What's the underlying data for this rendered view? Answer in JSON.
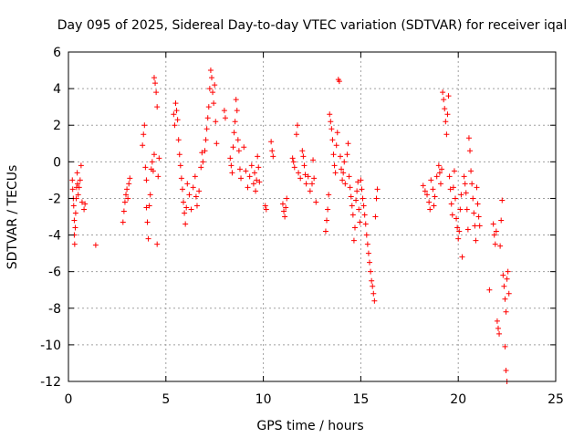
{
  "chart_data": {
    "type": "scatter",
    "title": "Day 095 of 2025, Sidereal Day-to-day VTEC variation (SDTVAR) for receiver iqal",
    "xlabel": "GPS time / hours",
    "ylabel": "SDTVAR / TECUs",
    "xlim": [
      0,
      25
    ],
    "ylim": [
      -12,
      6
    ],
    "xticks": [
      0,
      5,
      10,
      15,
      20,
      25
    ],
    "yticks": [
      -12,
      -10,
      -8,
      -6,
      -4,
      -2,
      0,
      2,
      4,
      6
    ],
    "xtick_labels": [
      "0",
      "5",
      "10",
      "15",
      "20",
      "25"
    ],
    "ytick_labels": [
      "-12",
      "-10",
      "-8",
      "-6",
      "-4",
      "-2",
      "0",
      "2",
      "4",
      "6"
    ],
    "grid": true,
    "marker": "+",
    "color": "#ff0000",
    "series": [
      {
        "name": "iqal",
        "points": [
          [
            0.2,
            -1.0
          ],
          [
            0.22,
            -1.5
          ],
          [
            0.25,
            -2.0
          ],
          [
            0.27,
            -2.4
          ],
          [
            0.3,
            -3.2
          ],
          [
            0.3,
            -4.0
          ],
          [
            0.32,
            -4.5
          ],
          [
            0.35,
            -3.6
          ],
          [
            0.37,
            -2.8
          ],
          [
            0.4,
            -2.0
          ],
          [
            0.42,
            -1.4
          ],
          [
            0.45,
            -0.6
          ],
          [
            0.47,
            -1.2
          ],
          [
            0.5,
            -1.8
          ],
          [
            0.55,
            -1.4
          ],
          [
            0.6,
            -1.0
          ],
          [
            0.65,
            -0.2
          ],
          [
            0.7,
            -2.2
          ],
          [
            0.8,
            -2.6
          ],
          [
            0.85,
            -2.3
          ],
          [
            1.4,
            -4.55
          ],
          [
            2.8,
            -3.3
          ],
          [
            2.85,
            -2.7
          ],
          [
            2.9,
            -2.2
          ],
          [
            2.95,
            -1.8
          ],
          [
            3.0,
            -1.5
          ],
          [
            3.05,
            -2.0
          ],
          [
            3.1,
            -1.2
          ],
          [
            3.15,
            -0.9
          ],
          [
            3.8,
            0.9
          ],
          [
            3.85,
            1.5
          ],
          [
            3.9,
            2.0
          ],
          [
            3.95,
            -0.3
          ],
          [
            4.0,
            -1.0
          ],
          [
            4.0,
            -2.5
          ],
          [
            4.05,
            -3.3
          ],
          [
            4.1,
            -4.2
          ],
          [
            4.15,
            -2.4
          ],
          [
            4.2,
            -1.8
          ],
          [
            4.25,
            -0.4
          ],
          [
            4.3,
            0.0
          ],
          [
            4.35,
            -0.5
          ],
          [
            4.4,
            0.4
          ],
          [
            4.4,
            4.6
          ],
          [
            4.45,
            4.3
          ],
          [
            4.5,
            3.8
          ],
          [
            4.55,
            3.0
          ],
          [
            4.55,
            -4.5
          ],
          [
            4.6,
            -0.8
          ],
          [
            4.65,
            0.2
          ],
          [
            5.4,
            2.6
          ],
          [
            5.45,
            2.0
          ],
          [
            5.5,
            3.2
          ],
          [
            5.55,
            2.8
          ],
          [
            5.6,
            2.3
          ],
          [
            5.65,
            1.2
          ],
          [
            5.7,
            0.4
          ],
          [
            5.75,
            -0.2
          ],
          [
            5.8,
            -0.9
          ],
          [
            5.85,
            -1.5
          ],
          [
            5.9,
            -2.2
          ],
          [
            5.95,
            -2.8
          ],
          [
            6.0,
            -3.4
          ],
          [
            6.05,
            -2.5
          ],
          [
            6.1,
            -1.2
          ],
          [
            6.2,
            -1.8
          ],
          [
            6.3,
            -2.6
          ],
          [
            6.4,
            -1.4
          ],
          [
            6.5,
            -0.8
          ],
          [
            6.55,
            -1.9
          ],
          [
            6.6,
            -2.4
          ],
          [
            6.7,
            -1.6
          ],
          [
            6.8,
            -0.3
          ],
          [
            6.85,
            0.5
          ],
          [
            6.9,
            0.0
          ],
          [
            7.0,
            0.6
          ],
          [
            7.05,
            1.2
          ],
          [
            7.1,
            1.8
          ],
          [
            7.15,
            2.4
          ],
          [
            7.2,
            3.0
          ],
          [
            7.25,
            4.0
          ],
          [
            7.3,
            5.0
          ],
          [
            7.35,
            4.6
          ],
          [
            7.4,
            3.8
          ],
          [
            7.45,
            3.2
          ],
          [
            7.5,
            4.2
          ],
          [
            7.55,
            2.2
          ],
          [
            7.6,
            1.0
          ],
          [
            8.0,
            2.8
          ],
          [
            8.05,
            2.4
          ],
          [
            8.3,
            0.2
          ],
          [
            8.35,
            -0.2
          ],
          [
            8.4,
            -0.6
          ],
          [
            8.45,
            0.8
          ],
          [
            8.5,
            1.6
          ],
          [
            8.55,
            2.2
          ],
          [
            8.6,
            3.4
          ],
          [
            8.65,
            2.8
          ],
          [
            8.7,
            1.2
          ],
          [
            8.75,
            0.6
          ],
          [
            8.8,
            -0.4
          ],
          [
            8.85,
            -0.9
          ],
          [
            9.0,
            0.8
          ],
          [
            9.1,
            -0.5
          ],
          [
            9.2,
            -1.4
          ],
          [
            9.3,
            -0.8
          ],
          [
            9.4,
            -0.2
          ],
          [
            9.5,
            -1.2
          ],
          [
            9.55,
            -0.6
          ],
          [
            9.6,
            -1.6
          ],
          [
            9.65,
            -1.0
          ],
          [
            9.7,
            0.3
          ],
          [
            9.75,
            -0.3
          ],
          [
            9.8,
            -1.1
          ],
          [
            10.1,
            -2.4
          ],
          [
            10.15,
            -2.6
          ],
          [
            10.4,
            1.1
          ],
          [
            10.45,
            0.6
          ],
          [
            10.5,
            0.3
          ],
          [
            11.0,
            -2.3
          ],
          [
            11.05,
            -2.7
          ],
          [
            11.1,
            -3.0
          ],
          [
            11.15,
            -2.5
          ],
          [
            11.2,
            -2.0
          ],
          [
            11.5,
            0.2
          ],
          [
            11.55,
            0.0
          ],
          [
            11.6,
            -0.3
          ],
          [
            11.7,
            1.5
          ],
          [
            11.75,
            2.0
          ],
          [
            11.8,
            -0.6
          ],
          [
            11.9,
            -0.9
          ],
          [
            12.0,
            0.6
          ],
          [
            12.05,
            0.3
          ],
          [
            12.1,
            -0.2
          ],
          [
            12.15,
            -0.7
          ],
          [
            12.2,
            -1.2
          ],
          [
            12.3,
            -0.8
          ],
          [
            12.4,
            -1.6
          ],
          [
            12.5,
            -1.2
          ],
          [
            12.55,
            0.1
          ],
          [
            12.6,
            -0.9
          ],
          [
            12.7,
            -2.2
          ],
          [
            13.2,
            -3.8
          ],
          [
            13.25,
            -3.2
          ],
          [
            13.3,
            -2.6
          ],
          [
            13.35,
            -1.8
          ],
          [
            13.4,
            2.6
          ],
          [
            13.45,
            2.2
          ],
          [
            13.5,
            1.8
          ],
          [
            13.55,
            1.2
          ],
          [
            13.6,
            0.4
          ],
          [
            13.65,
            -0.2
          ],
          [
            13.7,
            -0.6
          ],
          [
            13.75,
            0.9
          ],
          [
            13.8,
            1.6
          ],
          [
            13.85,
            4.5
          ],
          [
            13.9,
            4.4
          ],
          [
            13.95,
            0.3
          ],
          [
            14.0,
            -0.4
          ],
          [
            14.05,
            -1.0
          ],
          [
            14.1,
            -0.6
          ],
          [
            14.15,
            0.0
          ],
          [
            14.2,
            -1.2
          ],
          [
            14.3,
            0.4
          ],
          [
            14.35,
            1.0
          ],
          [
            14.4,
            -0.8
          ],
          [
            14.45,
            -1.4
          ],
          [
            14.5,
            -1.9
          ],
          [
            14.55,
            -2.4
          ],
          [
            14.6,
            -2.9
          ],
          [
            14.65,
            -4.3
          ],
          [
            14.7,
            -3.6
          ],
          [
            14.75,
            -2.1
          ],
          [
            14.8,
            -1.6
          ],
          [
            14.85,
            -1.1
          ],
          [
            14.9,
            -2.6
          ],
          [
            14.95,
            -3.3
          ],
          [
            15.0,
            -1.0
          ],
          [
            15.05,
            -1.5
          ],
          [
            15.1,
            -2.0
          ],
          [
            15.15,
            -2.4
          ],
          [
            15.2,
            -2.9
          ],
          [
            15.25,
            -3.4
          ],
          [
            15.3,
            -4.0
          ],
          [
            15.35,
            -4.5
          ],
          [
            15.4,
            -5.0
          ],
          [
            15.45,
            -5.5
          ],
          [
            15.5,
            -6.0
          ],
          [
            15.55,
            -6.5
          ],
          [
            15.6,
            -6.8
          ],
          [
            15.65,
            -7.2
          ],
          [
            15.7,
            -7.6
          ],
          [
            15.75,
            -3.0
          ],
          [
            15.8,
            -2.0
          ],
          [
            15.85,
            -1.5
          ],
          [
            18.2,
            -1.3
          ],
          [
            18.3,
            -1.6
          ],
          [
            18.4,
            -1.8
          ],
          [
            18.5,
            -2.2
          ],
          [
            18.55,
            -2.6
          ],
          [
            18.6,
            -1.0
          ],
          [
            18.7,
            -1.5
          ],
          [
            18.75,
            -2.4
          ],
          [
            18.8,
            -1.9
          ],
          [
            18.9,
            -0.8
          ],
          [
            19.0,
            -0.2
          ],
          [
            19.05,
            -0.6
          ],
          [
            19.1,
            -1.2
          ],
          [
            19.15,
            -0.4
          ],
          [
            19.2,
            3.8
          ],
          [
            19.25,
            3.4
          ],
          [
            19.3,
            2.9
          ],
          [
            19.35,
            2.2
          ],
          [
            19.4,
            1.5
          ],
          [
            19.45,
            2.6
          ],
          [
            19.5,
            3.6
          ],
          [
            19.55,
            -0.8
          ],
          [
            19.6,
            -1.5
          ],
          [
            19.65,
            -2.3
          ],
          [
            19.7,
            -2.9
          ],
          [
            19.75,
            -1.4
          ],
          [
            19.8,
            -0.5
          ],
          [
            19.85,
            -2.0
          ],
          [
            19.9,
            -3.1
          ],
          [
            19.95,
            -3.6
          ],
          [
            20.0,
            -4.2
          ],
          [
            20.05,
            -3.8
          ],
          [
            20.1,
            -2.6
          ],
          [
            20.15,
            -1.8
          ],
          [
            20.2,
            -5.2
          ],
          [
            20.3,
            -0.8
          ],
          [
            20.35,
            -1.2
          ],
          [
            20.4,
            -1.7
          ],
          [
            20.45,
            -2.6
          ],
          [
            20.5,
            -3.7
          ],
          [
            20.55,
            1.3
          ],
          [
            20.6,
            0.6
          ],
          [
            20.65,
            -0.5
          ],
          [
            20.7,
            -1.2
          ],
          [
            20.75,
            -2.0
          ],
          [
            20.8,
            -2.8
          ],
          [
            20.85,
            -3.5
          ],
          [
            20.9,
            -4.3
          ],
          [
            20.95,
            -1.4
          ],
          [
            21.0,
            -2.3
          ],
          [
            21.05,
            -3.0
          ],
          [
            21.1,
            -3.5
          ],
          [
            21.6,
            -7.0
          ],
          [
            21.8,
            -3.4
          ],
          [
            21.85,
            -4.0
          ],
          [
            21.9,
            -4.5
          ],
          [
            21.95,
            -3.8
          ],
          [
            22.0,
            -8.7
          ],
          [
            22.05,
            -9.1
          ],
          [
            22.1,
            -9.4
          ],
          [
            22.15,
            -4.6
          ],
          [
            22.2,
            -3.2
          ],
          [
            22.25,
            -2.1
          ],
          [
            22.3,
            -6.2
          ],
          [
            22.35,
            -6.8
          ],
          [
            22.4,
            -7.5
          ],
          [
            22.45,
            -8.2
          ],
          [
            22.5,
            -6.4
          ],
          [
            22.55,
            -6.0
          ],
          [
            22.6,
            -7.2
          ],
          [
            22.4,
            -10.1
          ],
          [
            22.45,
            -11.4
          ],
          [
            22.5,
            -12.0
          ]
        ]
      }
    ]
  }
}
